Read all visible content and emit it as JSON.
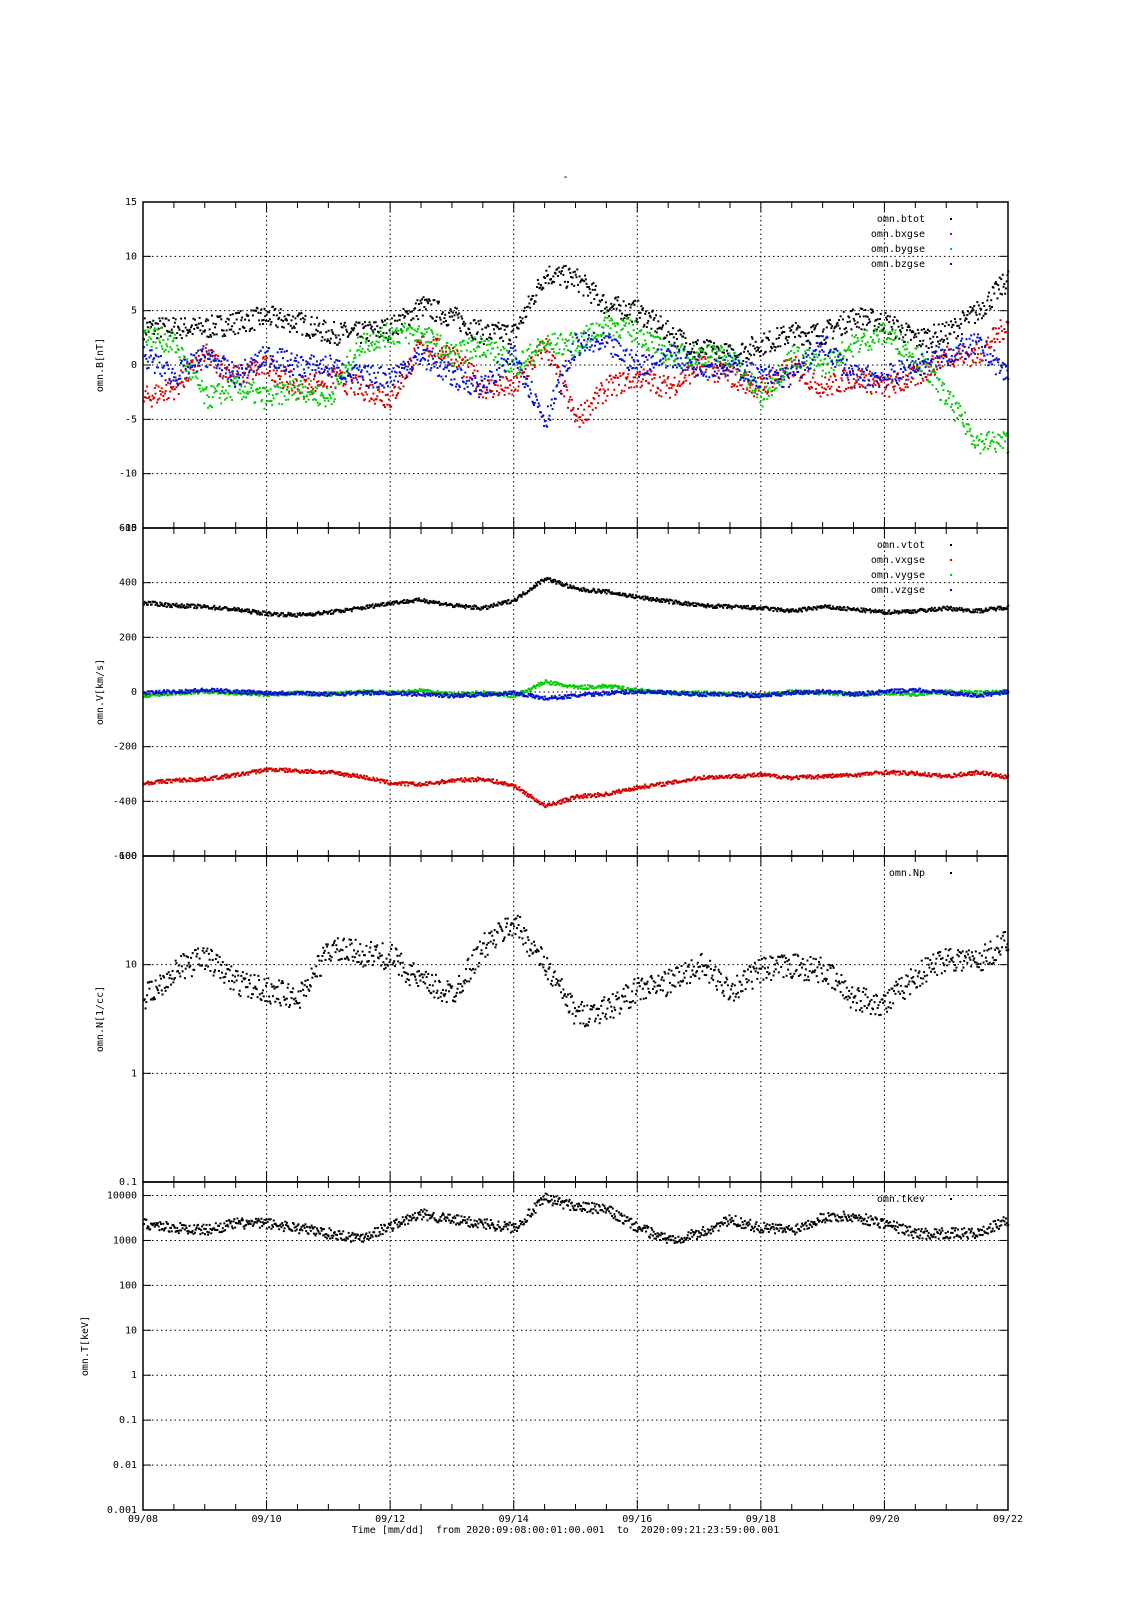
{
  "page": {
    "title": "-",
    "x_axis_label": "Time [mm/dd]",
    "from_label": "from",
    "from_value": "2020:09:08:00:01:00.001",
    "to_label": "to",
    "to_value": "2020:09:21:23:59:00.001"
  },
  "colors": {
    "black": "#000000",
    "red": "#d40000",
    "green": "#00cc00",
    "blue": "#0010d0"
  },
  "chart_data": [
    {
      "type": "scatter",
      "title": "",
      "xlabel": "Time [mm/dd]",
      "ylabel": "omn.B[nT]",
      "ylim": [
        -15,
        15
      ],
      "yscale": "linear",
      "yticks": [
        -15,
        -10,
        -5,
        0,
        5,
        10,
        15
      ],
      "ytick_labels": [
        "-15",
        "-10",
        "-5",
        "0",
        "5",
        "10",
        "15"
      ],
      "x_ticks": [
        "09/08",
        "09/10",
        "09/12",
        "09/14",
        "09/16",
        "09/18",
        "09/20",
        "09/22"
      ],
      "grid": true,
      "legend_position": "top-right",
      "series": [
        {
          "name": "omn.btot",
          "color": "#000000",
          "x": [
            0,
            0.5,
            1,
            1.5,
            2,
            2.5,
            3,
            3.5,
            4,
            4.5,
            5,
            5.5,
            6,
            6.5,
            7,
            7.5,
            8,
            8.5,
            9,
            9.5,
            10,
            10.5,
            11,
            11.5,
            12,
            12.5,
            13,
            13.5,
            14
          ],
          "y": [
            3.5,
            3.5,
            3.5,
            4,
            4.5,
            4,
            3,
            3,
            3.5,
            5.5,
            4.5,
            3,
            3,
            8.5,
            8,
            5.5,
            5,
            3,
            1.5,
            1,
            2,
            3,
            3,
            4.5,
            4,
            2.5,
            3,
            5,
            8
          ]
        },
        {
          "name": "omn.bxgse",
          "color": "#d40000",
          "x": [
            0,
            0.5,
            1,
            1.5,
            2,
            2.5,
            3,
            3.5,
            4,
            4.5,
            5,
            5.5,
            6,
            6.5,
            7,
            7.5,
            8,
            8.5,
            9,
            9.5,
            10,
            10.5,
            11,
            11.5,
            12,
            12.5,
            13,
            13.5,
            14
          ],
          "y": [
            -3,
            -2,
            1,
            -1,
            0,
            -2,
            -1,
            -2,
            -3,
            2,
            1,
            -2,
            -2,
            2,
            -5,
            -2,
            -1,
            -2,
            0,
            -1,
            -2,
            0,
            -2,
            -1,
            -2,
            -1,
            1,
            1,
            4
          ]
        },
        {
          "name": "omn.bygse",
          "color": "#00cc00",
          "x": [
            0,
            0.5,
            1,
            1.5,
            2,
            2.5,
            3,
            3.5,
            4,
            4.5,
            5,
            5.5,
            6,
            6.5,
            7,
            7.5,
            8,
            8.5,
            9,
            9.5,
            10,
            10.5,
            11,
            11.5,
            12,
            12.5,
            13,
            13.5,
            14
          ],
          "y": [
            3,
            2,
            -3,
            -2,
            -3,
            -2,
            -3,
            2,
            3,
            3,
            1,
            2,
            0,
            2,
            2,
            4,
            3,
            1,
            1,
            1,
            -3,
            1,
            0,
            2,
            3,
            1,
            -3,
            -7,
            -7
          ]
        },
        {
          "name": "omn.bzgse",
          "color": "#0010d0",
          "x": [
            0,
            0.5,
            1,
            1.5,
            2,
            2.5,
            3,
            3.5,
            4,
            4.5,
            5,
            5.5,
            6,
            6.5,
            7,
            7.5,
            8,
            8.5,
            9,
            9.5,
            10,
            10.5,
            11,
            11.5,
            12,
            12.5,
            13,
            13.5,
            14
          ],
          "y": [
            1,
            -1,
            1,
            -1,
            1,
            0,
            0,
            -1,
            -1,
            1,
            -1,
            -2,
            1,
            -5,
            2,
            2,
            0,
            1,
            0,
            0,
            -1,
            -1,
            2,
            -1,
            -1,
            0,
            1,
            2,
            -1
          ]
        }
      ]
    },
    {
      "type": "scatter",
      "title": "",
      "xlabel": "Time [mm/dd]",
      "ylabel": "omn.V[km/s]",
      "ylim": [
        -600,
        600
      ],
      "yscale": "linear",
      "yticks": [
        -600,
        -400,
        -200,
        0,
        200,
        400,
        600
      ],
      "ytick_labels": [
        "-600",
        "-400",
        "-200",
        "0",
        "200",
        "400",
        "600"
      ],
      "x_ticks": [
        "09/08",
        "09/10",
        "09/12",
        "09/14",
        "09/16",
        "09/18",
        "09/20",
        "09/22"
      ],
      "grid": true,
      "legend_position": "top-right",
      "series": [
        {
          "name": "omn.vtot",
          "color": "#000000",
          "x": [
            0,
            0.5,
            1,
            1.5,
            2,
            2.5,
            3,
            3.5,
            4,
            4.5,
            5,
            5.5,
            6,
            6.5,
            7,
            7.5,
            8,
            8.5,
            9,
            9.5,
            10,
            10.5,
            11,
            11.5,
            12,
            12.5,
            13,
            13.5,
            14
          ],
          "y": [
            330,
            320,
            315,
            305,
            290,
            285,
            295,
            310,
            330,
            340,
            320,
            310,
            340,
            420,
            380,
            370,
            350,
            335,
            320,
            315,
            310,
            300,
            315,
            305,
            295,
            300,
            310,
            300,
            315
          ]
        },
        {
          "name": "omn.vxgse",
          "color": "#d40000",
          "x": [
            0,
            0.5,
            1,
            1.5,
            2,
            2.5,
            3,
            3.5,
            4,
            4.5,
            5,
            5.5,
            6,
            6.5,
            7,
            7.5,
            8,
            8.5,
            9,
            9.5,
            10,
            10.5,
            11,
            11.5,
            12,
            12.5,
            13,
            13.5,
            14
          ],
          "y": [
            -330,
            -320,
            -315,
            -300,
            -280,
            -285,
            -290,
            -305,
            -330,
            -335,
            -320,
            -315,
            -340,
            -415,
            -380,
            -370,
            -345,
            -330,
            -310,
            -305,
            -300,
            -310,
            -305,
            -300,
            -290,
            -295,
            -305,
            -290,
            -310
          ]
        },
        {
          "name": "omn.vygse",
          "color": "#00cc00",
          "x": [
            0,
            0.5,
            1,
            1.5,
            2,
            2.5,
            3,
            3.5,
            4,
            4.5,
            5,
            5.5,
            6,
            6.5,
            7,
            7.5,
            8,
            8.5,
            9,
            9.5,
            10,
            10.5,
            11,
            11.5,
            12,
            12.5,
            13,
            13.5,
            14
          ],
          "y": [
            -10,
            0,
            5,
            0,
            -5,
            0,
            -5,
            5,
            0,
            10,
            -5,
            0,
            -10,
            40,
            20,
            25,
            10,
            0,
            0,
            -5,
            -10,
            5,
            0,
            -5,
            0,
            -5,
            5,
            0,
            5
          ]
        },
        {
          "name": "omn.vzgse",
          "color": "#0010d0",
          "x": [
            0,
            0.5,
            1,
            1.5,
            2,
            2.5,
            3,
            3.5,
            4,
            4.5,
            5,
            5.5,
            6,
            6.5,
            7,
            7.5,
            8,
            8.5,
            9,
            9.5,
            10,
            10.5,
            11,
            11.5,
            12,
            12.5,
            13,
            13.5,
            14
          ],
          "y": [
            0,
            5,
            10,
            5,
            0,
            0,
            -5,
            0,
            0,
            -5,
            -10,
            -5,
            0,
            -20,
            -10,
            0,
            5,
            0,
            -5,
            -5,
            -10,
            0,
            5,
            -5,
            5,
            10,
            0,
            -10,
            5
          ]
        }
      ]
    },
    {
      "type": "scatter",
      "title": "",
      "xlabel": "Time [mm/dd]",
      "ylabel": "omn.N[1/cc]",
      "ylim": [
        0.1,
        100
      ],
      "yscale": "log",
      "yticks": [
        0.1,
        1,
        10,
        100
      ],
      "ytick_labels": [
        "0.1",
        "1",
        "10",
        "100"
      ],
      "x_ticks": [
        "09/08",
        "09/10",
        "09/12",
        "09/14",
        "09/16",
        "09/18",
        "09/20",
        "09/22"
      ],
      "grid": true,
      "legend_position": "top-right",
      "series": [
        {
          "name": "omn.Np",
          "color": "#000000",
          "x": [
            0,
            0.5,
            1,
            1.5,
            2,
            2.5,
            3,
            3.5,
            4,
            4.5,
            5,
            5.5,
            6,
            6.5,
            7,
            7.5,
            8,
            8.5,
            9,
            9.5,
            10,
            10.5,
            11,
            11.5,
            12,
            12.5,
            13,
            13.5,
            14
          ],
          "y": [
            5,
            9,
            12,
            7,
            6,
            5,
            14,
            13,
            12,
            7,
            5.5,
            15,
            25,
            10,
            3.5,
            4,
            6,
            7,
            10,
            6,
            9,
            10,
            9,
            5,
            4.5,
            8,
            12,
            11,
            17
          ]
        }
      ]
    },
    {
      "type": "scatter",
      "title": "",
      "xlabel": "Time [mm/dd]",
      "ylabel": "omn.T[keV]",
      "ylim": [
        0.001,
        20000
      ],
      "yscale": "log",
      "yticks": [
        0.001,
        0.01,
        0.1,
        1,
        10,
        100,
        1000,
        10000
      ],
      "ytick_labels": [
        "0.001",
        "0.01",
        "0.1",
        "1",
        "10",
        "100",
        "1000",
        "10000"
      ],
      "x_ticks": [
        "09/08",
        "09/10",
        "09/12",
        "09/14",
        "09/16",
        "09/18",
        "09/20",
        "09/22"
      ],
      "grid": true,
      "legend_position": "top-right",
      "series": [
        {
          "name": "omn.tkev",
          "color": "#000000",
          "x": [
            0,
            0.5,
            1,
            1.5,
            2,
            2.5,
            3,
            3.5,
            4,
            4.5,
            5,
            5.5,
            6,
            6.5,
            7,
            7.5,
            8,
            8.5,
            9,
            9.5,
            10,
            10.5,
            11,
            11.5,
            12,
            12.5,
            13,
            13.5,
            14
          ],
          "y": [
            2500,
            2000,
            1800,
            2500,
            2500,
            2000,
            1500,
            1200,
            2200,
            4000,
            3000,
            2500,
            2000,
            9000,
            6000,
            5000,
            2000,
            1100,
            1500,
            3000,
            2000,
            1800,
            3500,
            3500,
            2500,
            1500,
            1500,
            1500,
            3000
          ]
        }
      ]
    }
  ]
}
